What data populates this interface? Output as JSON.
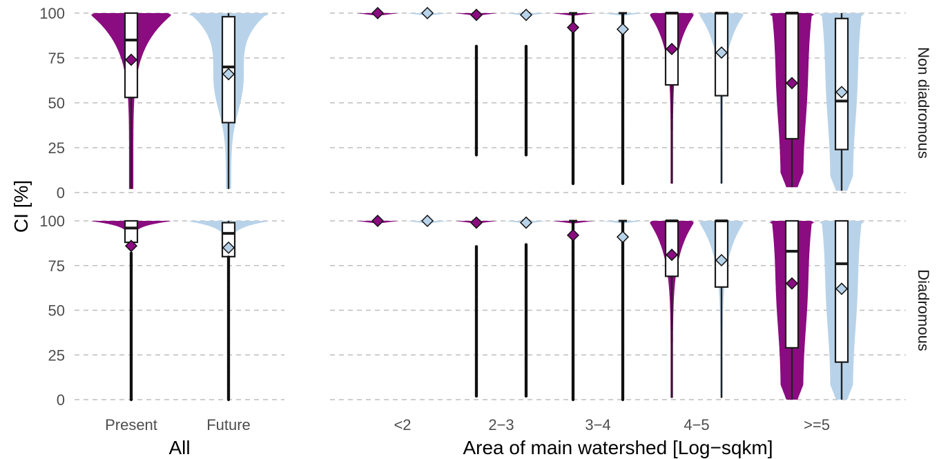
{
  "chart_data": {
    "type": "violin",
    "ylabel": "CI [%]",
    "yticks": [
      0,
      25,
      50,
      75,
      100
    ],
    "ylim": [
      0,
      100
    ],
    "series": [
      {
        "name": "Present",
        "color": "#8b0b80"
      },
      {
        "name": "Future",
        "color": "#b8d3e9"
      }
    ],
    "rows": [
      "Non diadromous",
      "Diadromous"
    ],
    "panels": [
      {
        "xlabel": "All",
        "categories": [
          "Present",
          "Future"
        ]
      },
      {
        "xlabel": "Area of main watershed [Log−sqkm]",
        "categories": [
          "<2",
          "2−3",
          "3−4",
          "4−5",
          ">=5"
        ]
      }
    ],
    "groups": [
      {
        "row": 0,
        "panel": 0,
        "category": "Present",
        "series": "Present",
        "min": 2,
        "q1": 53,
        "median": 85,
        "q3": 100,
        "max": 100,
        "mean": 74,
        "shape": "top-heavy"
      },
      {
        "row": 0,
        "panel": 0,
        "category": "Future",
        "series": "Future",
        "min": 2,
        "q1": 39,
        "median": 70,
        "q3": 98,
        "max": 100,
        "mean": 66,
        "shape": "spread"
      },
      {
        "row": 0,
        "panel": 1,
        "category": "<2",
        "series": "Present",
        "min": 100,
        "q1": 100,
        "median": 100,
        "q3": 100,
        "max": 100,
        "mean": 100,
        "shape": "flat"
      },
      {
        "row": 0,
        "panel": 1,
        "category": "<2",
        "series": "Future",
        "min": 100,
        "q1": 100,
        "median": 100,
        "q3": 100,
        "max": 100,
        "mean": 100,
        "shape": "flat"
      },
      {
        "row": 0,
        "panel": 1,
        "category": "2−3",
        "series": "Present",
        "min": 99,
        "q1": 100,
        "median": 100,
        "q3": 100,
        "max": 100,
        "mean": 99,
        "shape": "flat",
        "outliers": [
          21,
          82
        ]
      },
      {
        "row": 0,
        "panel": 1,
        "category": "2−3",
        "series": "Future",
        "min": 99,
        "q1": 100,
        "median": 100,
        "q3": 100,
        "max": 100,
        "mean": 99,
        "shape": "flat",
        "outliers": [
          21,
          82
        ]
      },
      {
        "row": 0,
        "panel": 1,
        "category": "3−4",
        "series": "Present",
        "min": 100,
        "q1": 100,
        "median": 100,
        "q3": 100,
        "max": 100,
        "mean": 92,
        "shape": "flat",
        "outliers": [
          5,
          100
        ]
      },
      {
        "row": 0,
        "panel": 1,
        "category": "3−4",
        "series": "Future",
        "min": 100,
        "q1": 100,
        "median": 100,
        "q3": 100,
        "max": 100,
        "mean": 91,
        "shape": "flat",
        "outliers": [
          5,
          100
        ]
      },
      {
        "row": 0,
        "panel": 1,
        "category": "4−5",
        "series": "Present",
        "min": 5,
        "q1": 60,
        "median": 100,
        "q3": 100,
        "max": 100,
        "mean": 80,
        "shape": "top-heavy"
      },
      {
        "row": 0,
        "panel": 1,
        "category": "4−5",
        "series": "Future",
        "min": 5,
        "q1": 54,
        "median": 100,
        "q3": 100,
        "max": 100,
        "mean": 78,
        "shape": "top-heavy"
      },
      {
        "row": 0,
        "panel": 1,
        "category": ">=5",
        "series": "Present",
        "min": 3,
        "q1": 30,
        "median": 100,
        "q3": 100,
        "max": 100,
        "mean": 61,
        "shape": "wide"
      },
      {
        "row": 0,
        "panel": 1,
        "category": ">=5",
        "series": "Future",
        "min": 1,
        "q1": 24,
        "median": 51,
        "q3": 97,
        "max": 100,
        "mean": 56,
        "shape": "wide"
      },
      {
        "row": 1,
        "panel": 0,
        "category": "Present",
        "series": "Present",
        "min": 85,
        "q1": 88,
        "median": 96,
        "q3": 100,
        "max": 100,
        "mean": 86,
        "shape": "top-heavy",
        "outliers": [
          0,
          82
        ]
      },
      {
        "row": 1,
        "panel": 0,
        "category": "Future",
        "series": "Future",
        "min": 80,
        "q1": 80,
        "median": 93,
        "q3": 99,
        "max": 100,
        "mean": 85,
        "shape": "top-heavy",
        "outliers": [
          0,
          80
        ]
      },
      {
        "row": 1,
        "panel": 1,
        "category": "<2",
        "series": "Present",
        "min": 100,
        "q1": 100,
        "median": 100,
        "q3": 100,
        "max": 100,
        "mean": 100,
        "shape": "flat"
      },
      {
        "row": 1,
        "panel": 1,
        "category": "<2",
        "series": "Future",
        "min": 100,
        "q1": 100,
        "median": 100,
        "q3": 100,
        "max": 100,
        "mean": 100,
        "shape": "flat"
      },
      {
        "row": 1,
        "panel": 1,
        "category": "2−3",
        "series": "Present",
        "min": 99,
        "q1": 100,
        "median": 100,
        "q3": 100,
        "max": 100,
        "mean": 99,
        "shape": "flat",
        "outliers": [
          2,
          86
        ]
      },
      {
        "row": 1,
        "panel": 1,
        "category": "2−3",
        "series": "Future",
        "min": 99,
        "q1": 100,
        "median": 100,
        "q3": 100,
        "max": 100,
        "mean": 99,
        "shape": "flat",
        "outliers": [
          2,
          87
        ]
      },
      {
        "row": 1,
        "panel": 1,
        "category": "3−4",
        "series": "Present",
        "min": 100,
        "q1": 100,
        "median": 100,
        "q3": 100,
        "max": 100,
        "mean": 92,
        "shape": "flat",
        "outliers": [
          0,
          100
        ]
      },
      {
        "row": 1,
        "panel": 1,
        "category": "3−4",
        "series": "Future",
        "min": 100,
        "q1": 100,
        "median": 100,
        "q3": 100,
        "max": 100,
        "mean": 91,
        "shape": "flat",
        "outliers": [
          0,
          100
        ]
      },
      {
        "row": 1,
        "panel": 1,
        "category": "4−5",
        "series": "Present",
        "min": 1,
        "q1": 69,
        "median": 100,
        "q3": 100,
        "max": 100,
        "mean": 81,
        "shape": "top-heavy"
      },
      {
        "row": 1,
        "panel": 1,
        "category": "4−5",
        "series": "Future",
        "min": 1,
        "q1": 63,
        "median": 100,
        "q3": 100,
        "max": 100,
        "mean": 78,
        "shape": "top-heavy"
      },
      {
        "row": 1,
        "panel": 1,
        "category": ">=5",
        "series": "Present",
        "min": 0,
        "q1": 29,
        "median": 83,
        "q3": 100,
        "max": 100,
        "mean": 65,
        "shape": "wide"
      },
      {
        "row": 1,
        "panel": 1,
        "category": ">=5",
        "series": "Future",
        "min": 0,
        "q1": 21,
        "median": 76,
        "q3": 100,
        "max": 100,
        "mean": 62,
        "shape": "wide"
      }
    ],
    "grid": true,
    "legend": "none"
  }
}
